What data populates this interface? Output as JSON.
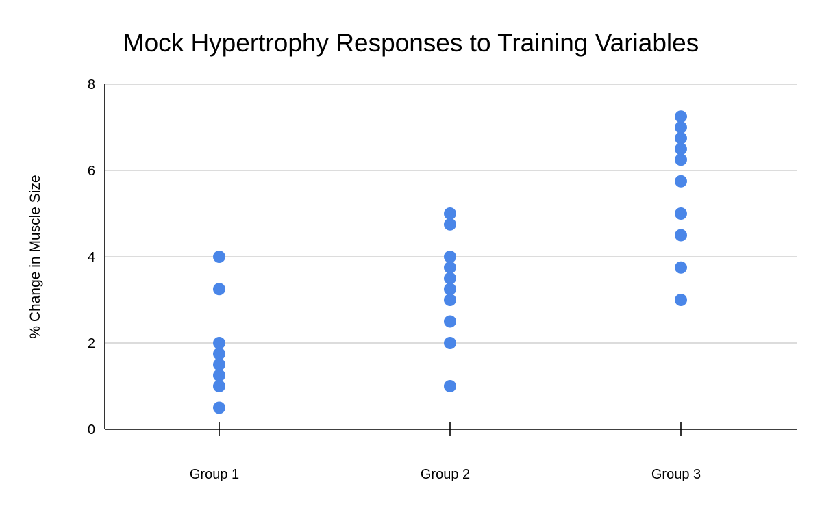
{
  "chart_data": {
    "type": "scatter",
    "title": "Mock Hypertrophy Responses to Training Variables",
    "xlabel": "",
    "ylabel": "% Change in Muscle Size",
    "categories": [
      "Group 1",
      "Group 2",
      "Group 3"
    ],
    "ylim": [
      0,
      8
    ],
    "yticks": [
      0,
      2,
      4,
      6,
      8
    ],
    "grid": true,
    "legend": "none",
    "marker_color": "#4a86e8",
    "series": [
      {
        "values": [
          [
            4.0,
            3.25,
            2.0,
            1.75,
            1.5,
            1.25,
            1.0,
            0.5
          ],
          [
            5.0,
            4.75,
            4.0,
            3.75,
            3.5,
            3.25,
            3.0,
            2.5,
            2.0,
            1.0
          ],
          [
            7.25,
            7.0,
            6.75,
            6.5,
            6.25,
            5.75,
            5.0,
            4.5,
            3.75,
            3.0
          ]
        ]
      }
    ]
  }
}
